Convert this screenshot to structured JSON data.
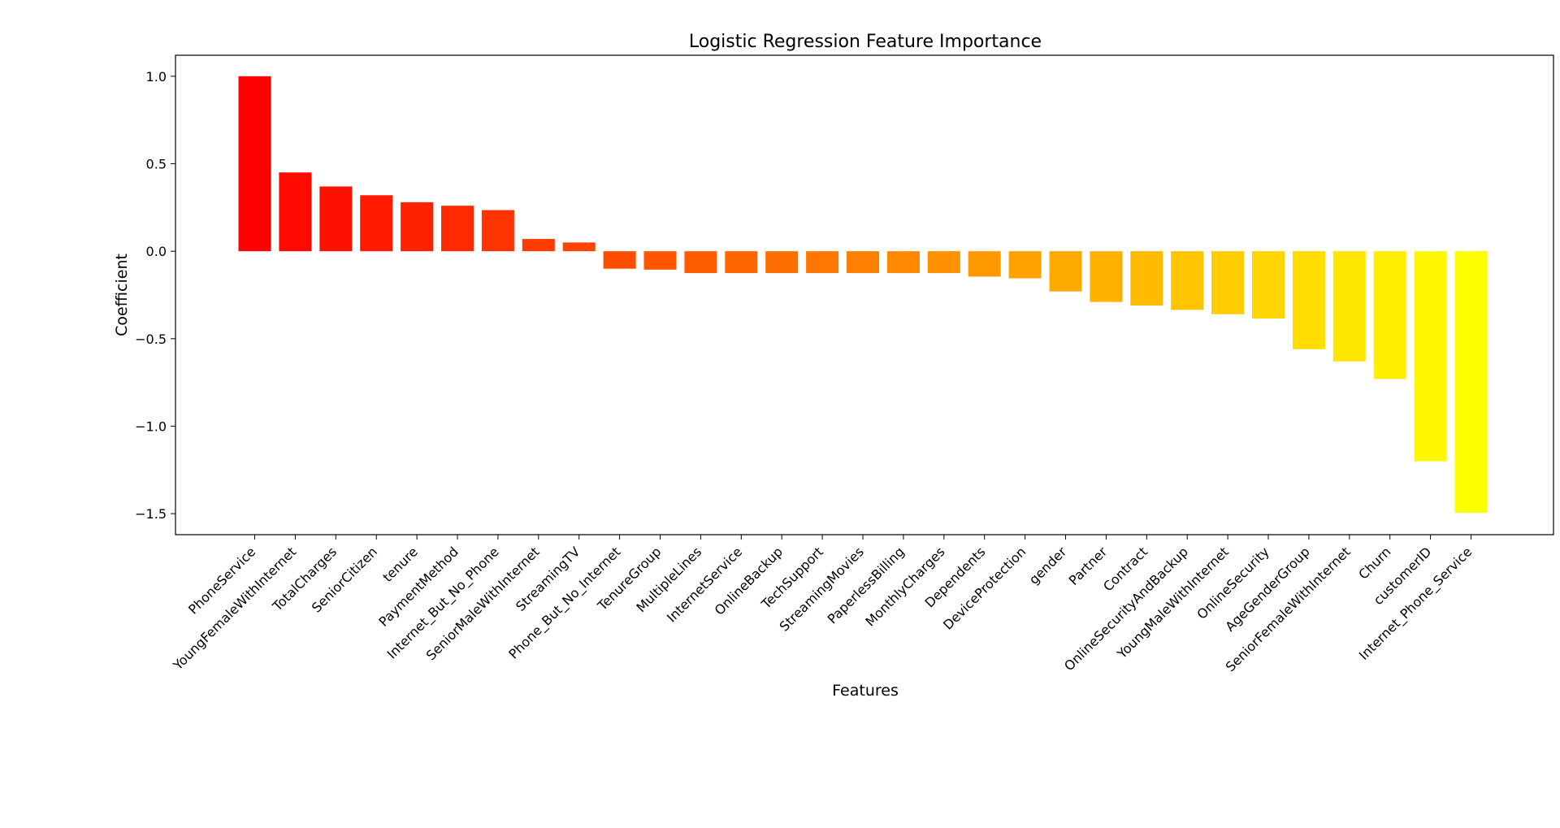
{
  "chart_data": {
    "type": "bar",
    "title": "Logistic Regression Feature Importance",
    "xlabel": "Features",
    "ylabel": "Coefficient",
    "ylim": [
      -1.62,
      1.12
    ],
    "yticks": [
      1.0,
      0.5,
      0.0,
      -0.5,
      -1.0,
      -1.5
    ],
    "ytick_labels": [
      "1.0",
      "0.5",
      "0.0",
      "−0.5",
      "−1.0",
      "−1.5"
    ],
    "grid": false,
    "legend": "none",
    "colormap": "autumn",
    "color_start": "#ff0000",
    "color_end": "#ffff00",
    "categories": [
      "PhoneService",
      "YoungFemaleWithInternet",
      "TotalCharges",
      "SeniorCitizen",
      "tenure",
      "PaymentMethod",
      "Internet_But_No_Phone",
      "SeniorMaleWithInternet",
      "StreamingTV",
      "Phone_But_No_Internet",
      "TenureGroup",
      "MultipleLines",
      "InternetService",
      "OnlineBackup",
      "TechSupport",
      "StreamingMovies",
      "PaperlessBilling",
      "MonthlyCharges",
      "Dependents",
      "DeviceProtection",
      "gender",
      "Partner",
      "Contract",
      "OnlineSecurityAndBackup",
      "YoungMaleWithInternet",
      "OnlineSecurity",
      "AgeGenderGroup",
      "SeniorFemaleWithInternet",
      "Churn",
      "customerID",
      "Internet_Phone_Service"
    ],
    "values": [
      1.0,
      0.45,
      0.37,
      0.32,
      0.28,
      0.26,
      0.235,
      0.07,
      0.05,
      -0.1,
      -0.105,
      -0.125,
      -0.125,
      -0.125,
      -0.125,
      -0.125,
      -0.125,
      -0.125,
      -0.145,
      -0.155,
      -0.23,
      -0.29,
      -0.31,
      -0.335,
      -0.36,
      -0.385,
      -0.56,
      -0.63,
      -0.73,
      -1.2,
      -1.495
    ]
  }
}
